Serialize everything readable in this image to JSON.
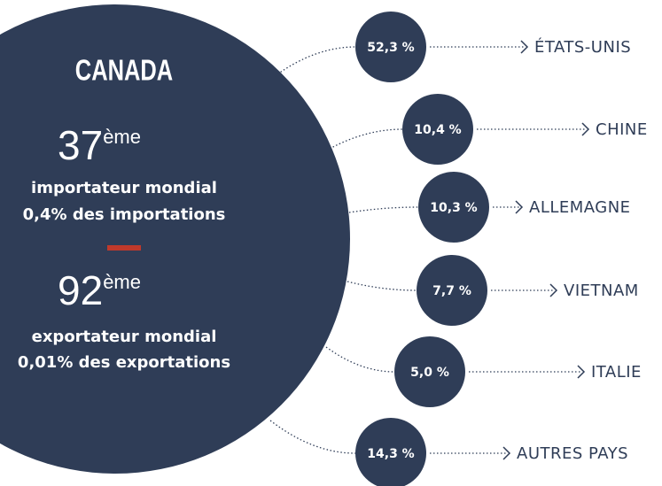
{
  "country": "CANADA",
  "import": {
    "rank": "37",
    "suffix": "ème",
    "role": "importateur mondial",
    "share": "0,4% des importations"
  },
  "export": {
    "rank": "92",
    "suffix": "ème",
    "role": "exportateur mondial",
    "share": "0,01% des exportations"
  },
  "partners": [
    {
      "share": "52,3 %",
      "name": "ÉTATS-UNIS"
    },
    {
      "share": "10,4 %",
      "name": "CHINE"
    },
    {
      "share": "10,3 %",
      "name": "ALLEMAGNE"
    },
    {
      "share": "7,7 %",
      "name": "VIETNAM"
    },
    {
      "share": "5,0 %",
      "name": "ITALIE"
    },
    {
      "share": "14,3 %",
      "name": "AUTRES PAYS"
    }
  ]
}
